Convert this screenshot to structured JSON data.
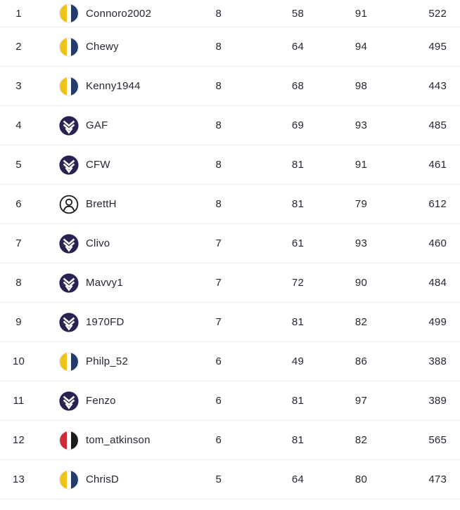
{
  "colors": {
    "text": "#262633",
    "divider": "#ececec",
    "stripe_gold": "#EFC319",
    "stripe_navy": "#203D6D",
    "stripe_red": "#CE2B37",
    "stripe_black": "#1B1B1B",
    "stripe_white": "#FFFFFF",
    "chevron_circle": "#2B2150",
    "chevron_mark": "#FFFFFF",
    "person_outline": "#1A1A1A",
    "avatar_ring": "#E3E3E3"
  },
  "table": {
    "rows": [
      {
        "rank": "1",
        "avatar": "striped-gold",
        "name": "Connoro2002",
        "values": [
          "8",
          "58",
          "91",
          "522"
        ]
      },
      {
        "rank": "2",
        "avatar": "striped-gold",
        "name": "Chewy",
        "values": [
          "8",
          "64",
          "94",
          "495"
        ]
      },
      {
        "rank": "3",
        "avatar": "striped-gold",
        "name": "Kenny1944",
        "values": [
          "8",
          "68",
          "98",
          "443"
        ]
      },
      {
        "rank": "4",
        "avatar": "chevron-purple",
        "name": "GAF",
        "values": [
          "8",
          "69",
          "93",
          "485"
        ]
      },
      {
        "rank": "5",
        "avatar": "chevron-purple",
        "name": "CFW",
        "values": [
          "8",
          "81",
          "91",
          "461"
        ]
      },
      {
        "rank": "6",
        "avatar": "person-outline",
        "name": "BrettH",
        "values": [
          "8",
          "81",
          "79",
          "612"
        ]
      },
      {
        "rank": "7",
        "avatar": "chevron-purple",
        "name": "Clivo",
        "values": [
          "7",
          "61",
          "93",
          "460"
        ]
      },
      {
        "rank": "8",
        "avatar": "chevron-purple",
        "name": "Mavvy1",
        "values": [
          "7",
          "72",
          "90",
          "484"
        ]
      },
      {
        "rank": "9",
        "avatar": "chevron-purple",
        "name": "1970FD",
        "values": [
          "7",
          "81",
          "82",
          "499"
        ]
      },
      {
        "rank": "10",
        "avatar": "striped-gold",
        "name": "Philp_52",
        "values": [
          "6",
          "49",
          "86",
          "388"
        ]
      },
      {
        "rank": "11",
        "avatar": "chevron-purple",
        "name": "Fenzo",
        "values": [
          "6",
          "81",
          "97",
          "389"
        ]
      },
      {
        "rank": "12",
        "avatar": "striped-red",
        "name": "tom_atkinson",
        "values": [
          "6",
          "81",
          "82",
          "565"
        ]
      },
      {
        "rank": "13",
        "avatar": "striped-gold",
        "name": "ChrisD",
        "values": [
          "5",
          "64",
          "80",
          "473"
        ]
      }
    ]
  }
}
